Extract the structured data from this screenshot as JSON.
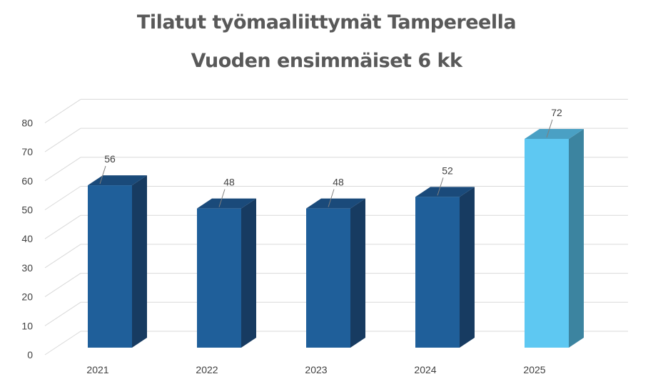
{
  "chart_data": {
    "type": "bar",
    "title": "Tilatut työmaaliittymät Tampereella",
    "subtitle": "Vuoden ensimmäiset  6 kk",
    "categories": [
      "2021",
      "2022",
      "2023",
      "2024",
      "2025"
    ],
    "values": [
      56,
      48,
      48,
      52,
      72
    ],
    "ylim": [
      0,
      80
    ],
    "yticks": [
      0,
      10,
      20,
      30,
      40,
      50,
      60,
      70,
      80
    ],
    "grid": true,
    "style": "3d-column",
    "colors": {
      "front": [
        "#1f5f9a",
        "#1f5f9a",
        "#1f5f9a",
        "#1f5f9a",
        "#5ec8f2"
      ],
      "side": [
        "#173b61",
        "#173b61",
        "#173b61",
        "#173b61",
        "#3c84a0"
      ],
      "top": [
        "#1a4a7a",
        "#1a4a7a",
        "#1a4a7a",
        "#1a4a7a",
        "#4aa0c4"
      ],
      "grid": "#d9d9d9",
      "text": "#404040",
      "title": "#595959"
    }
  }
}
